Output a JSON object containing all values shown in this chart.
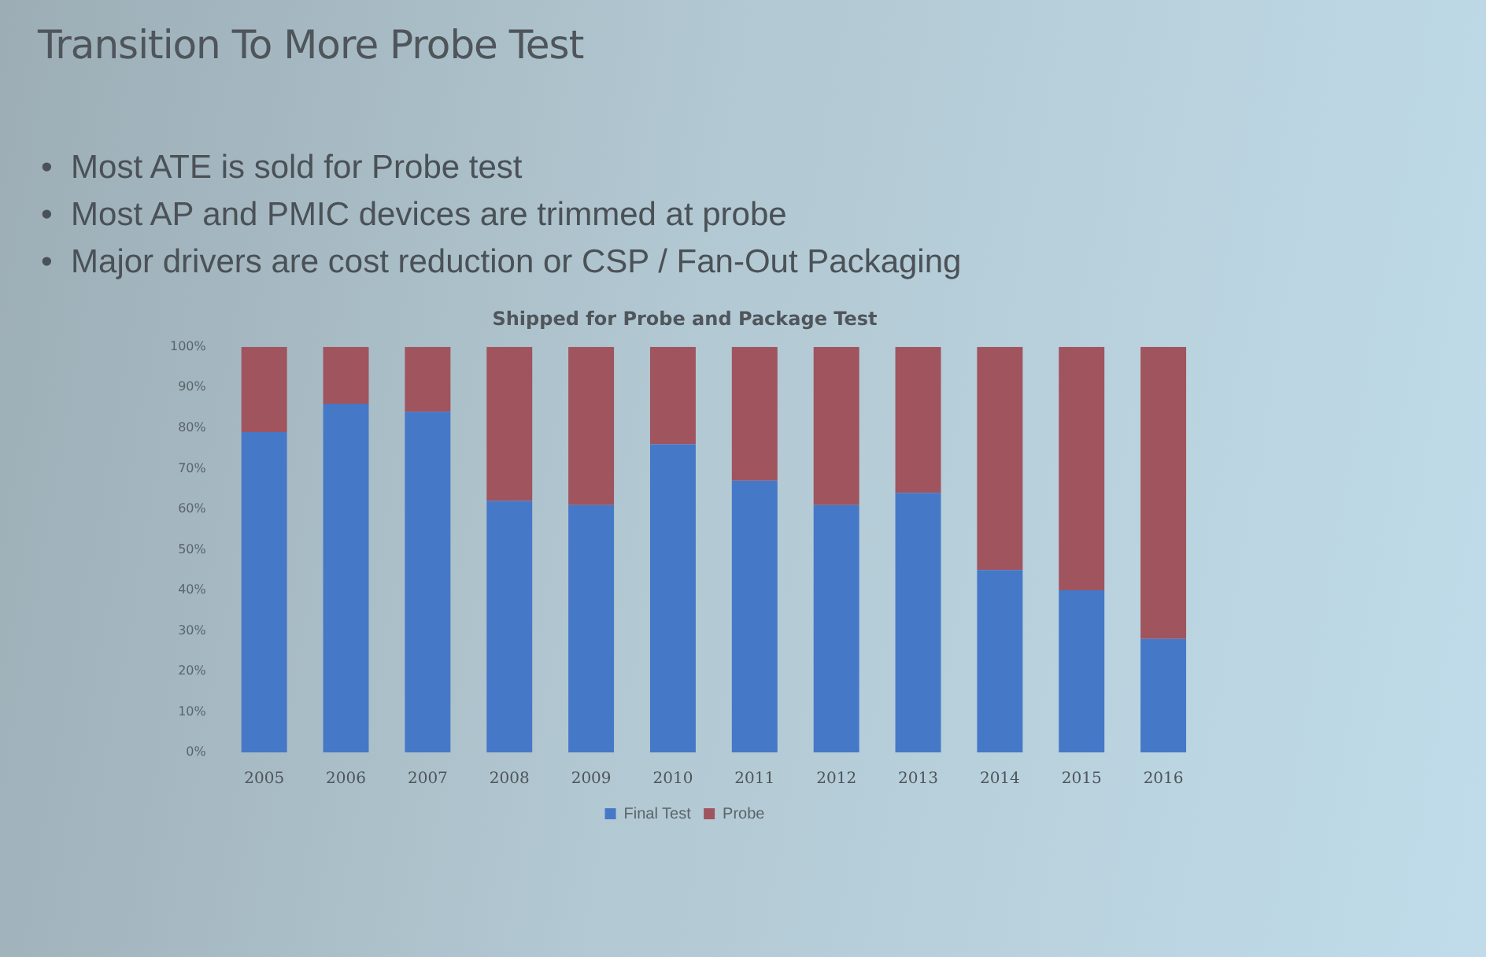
{
  "chart_data": {
    "type": "bar",
    "title": "Transition To More Probe Test",
    "subtitle": "Shipped for Probe and Package Test",
    "annotations": [
      "•  Most ATE is sold for Probe test",
      "•  Most AP and PMIC devices are trimmed at probe",
      "•  Major drivers are cost reduction or CSP / Fan-Out Packaging"
    ],
    "categories": [
      "2005",
      "2006",
      "2007",
      "2008",
      "2009",
      "2010",
      "2011",
      "2012",
      "2013",
      "2014",
      "2015",
      "2016"
    ],
    "series": [
      {
        "name": "Final Test",
        "color": "#4678c8",
        "values": [
          79,
          86,
          84,
          62,
          61,
          76,
          67,
          61,
          64,
          45,
          40,
          28
        ]
      },
      {
        "name": "Probe",
        "color": "#a0545e",
        "values": [
          21,
          14,
          16,
          38,
          39,
          24,
          33,
          39,
          36,
          55,
          60,
          72
        ]
      }
    ],
    "stacked": true,
    "ylim": [
      0,
      100
    ],
    "yticks": [
      {
        "value": 0,
        "label": "0%"
      },
      {
        "value": 10,
        "label": "10%"
      },
      {
        "value": 20,
        "label": "20%"
      },
      {
        "value": 30,
        "label": "30%"
      },
      {
        "value": 40,
        "label": "40%"
      },
      {
        "value": 50,
        "label": "50%"
      },
      {
        "value": 60,
        "label": "60%"
      },
      {
        "value": 70,
        "label": "70%"
      },
      {
        "value": 80,
        "label": "80%"
      },
      {
        "value": 90,
        "label": "90%"
      },
      {
        "value": 100,
        "label": "100%"
      }
    ],
    "legend": "bottom"
  }
}
